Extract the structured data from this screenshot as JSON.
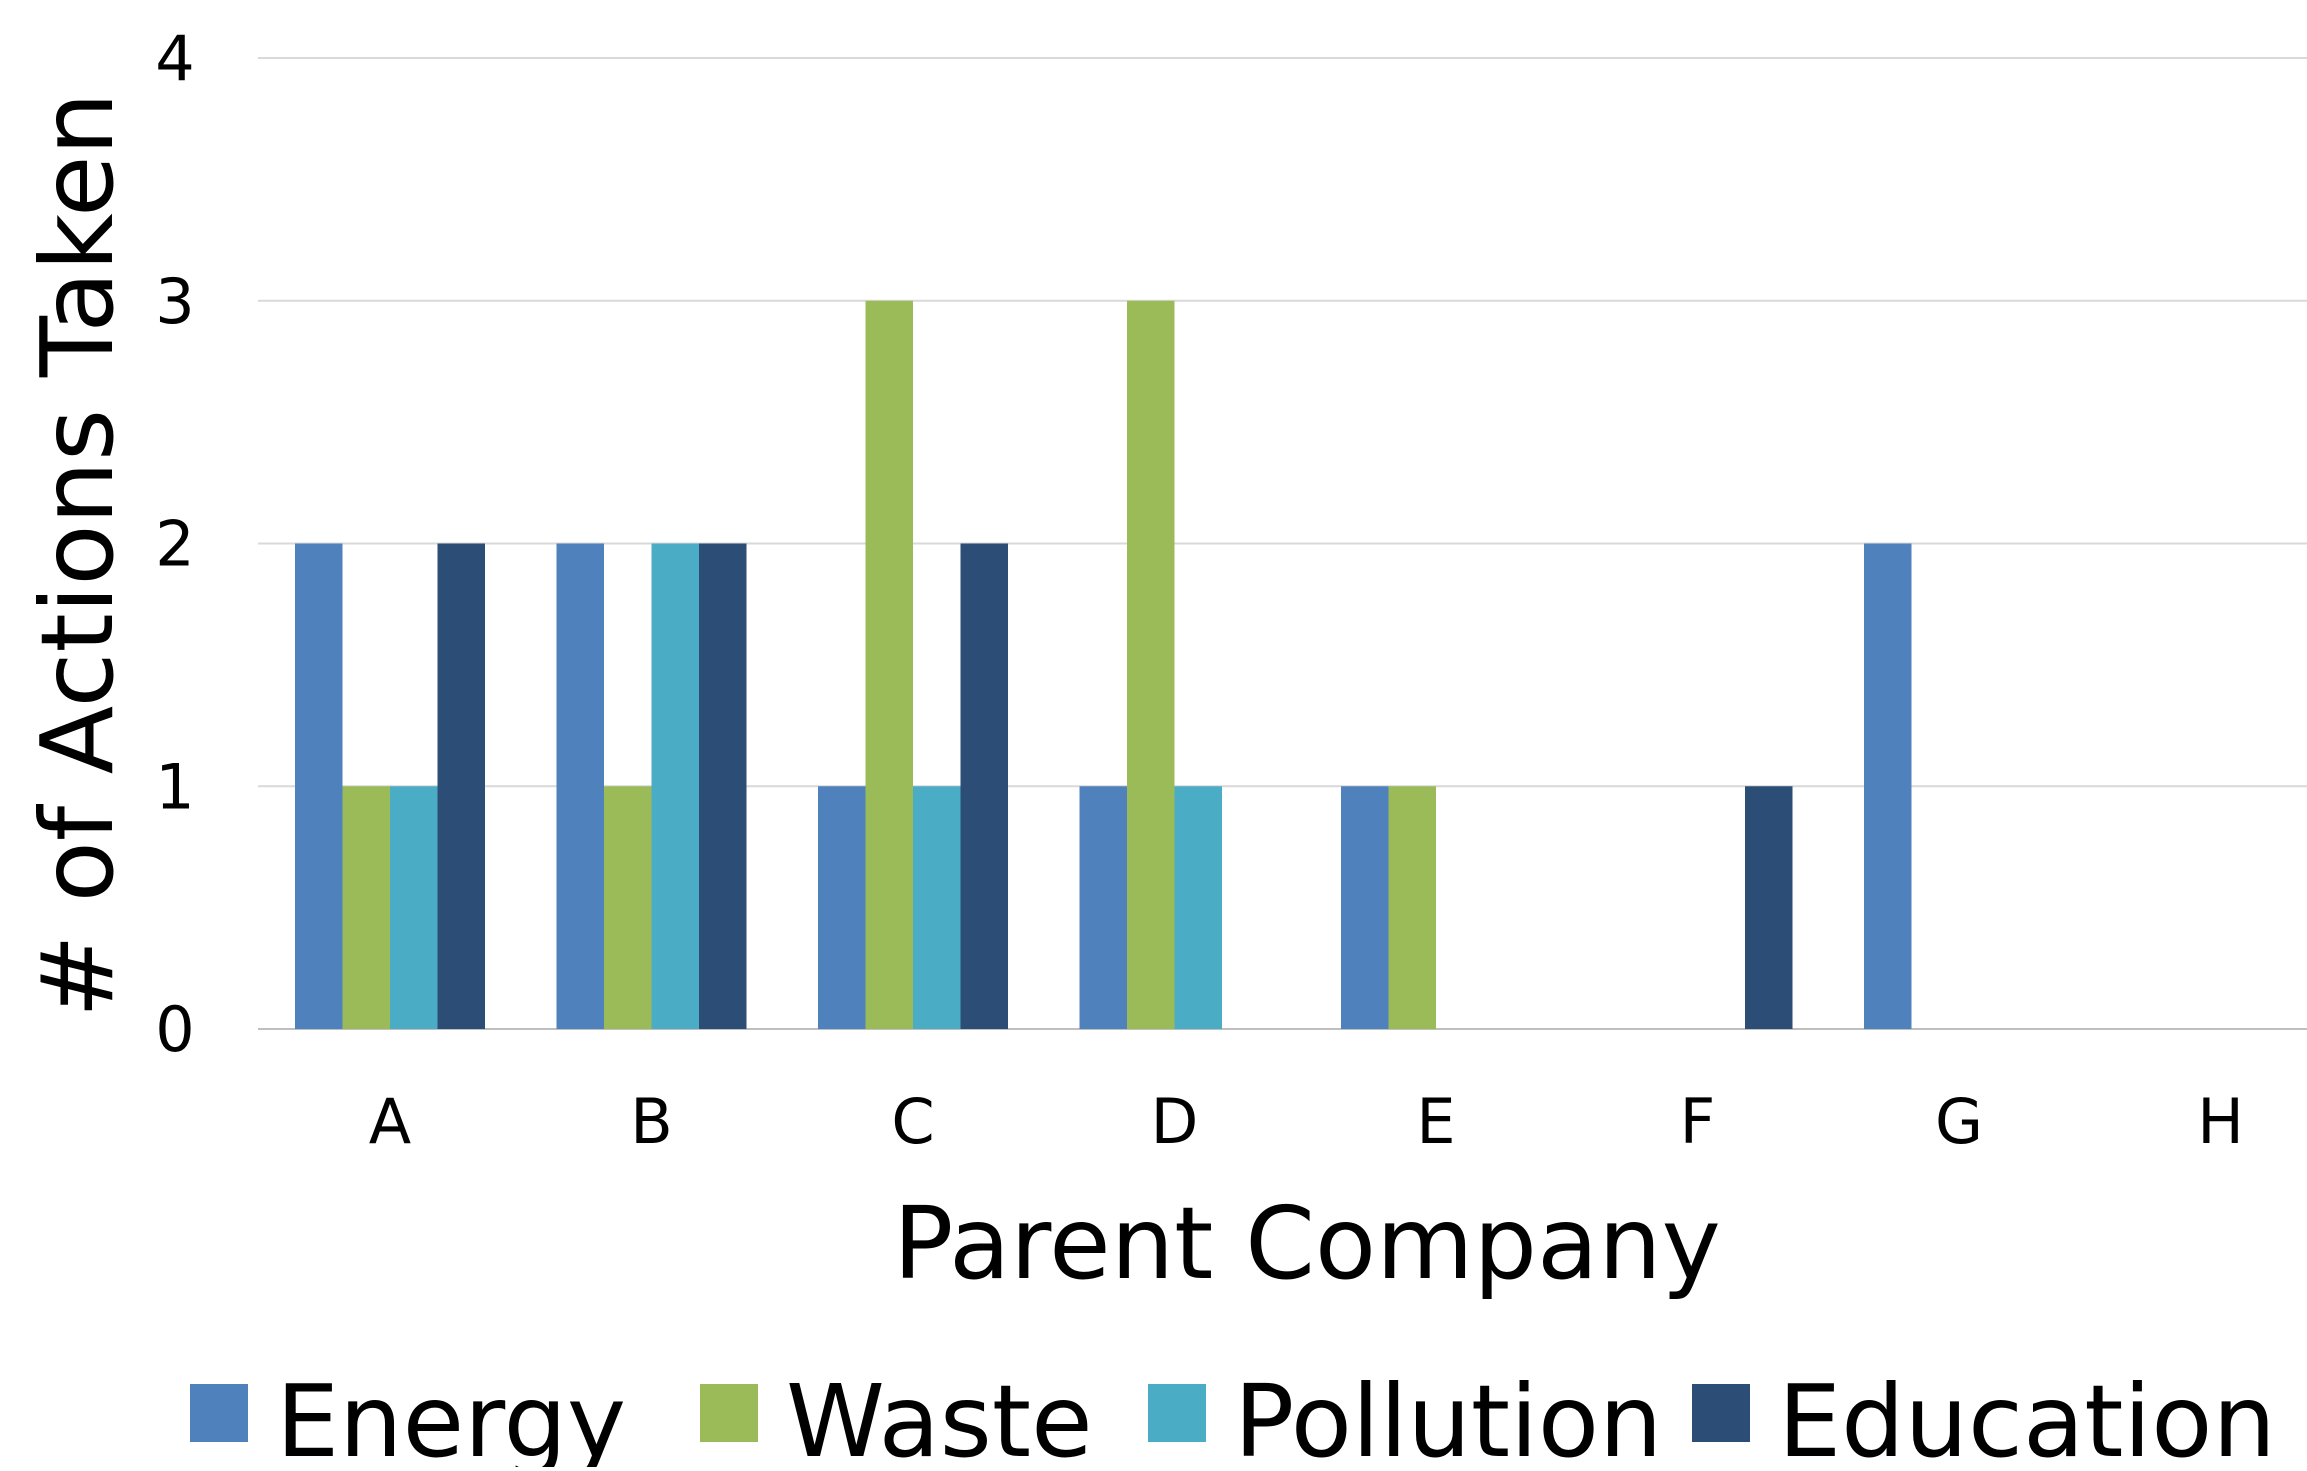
{
  "chart_data": {
    "type": "bar",
    "title": "",
    "xlabel": "Parent Company",
    "ylabel": "# of Actions Taken",
    "categories": [
      "A",
      "B",
      "C",
      "D",
      "E",
      "F",
      "G",
      "H"
    ],
    "series": [
      {
        "name": "Energy",
        "color": "#4F81BD",
        "values": [
          2,
          2,
          1,
          1,
          1,
          0,
          2,
          0
        ]
      },
      {
        "name": "Waste",
        "color": "#9BBB59",
        "values": [
          1,
          1,
          3,
          3,
          1,
          0,
          0,
          0
        ]
      },
      {
        "name": "Pollution",
        "color": "#4BACC6",
        "values": [
          1,
          2,
          1,
          1,
          0,
          0,
          0,
          0
        ]
      },
      {
        "name": "Education",
        "color": "#2C4D75",
        "values": [
          2,
          2,
          2,
          0,
          0,
          1,
          0,
          0
        ]
      }
    ],
    "ylim": [
      0,
      4
    ],
    "yticks": [
      0,
      1,
      2,
      3,
      4
    ],
    "grid": true,
    "legend_position": "bottom"
  }
}
